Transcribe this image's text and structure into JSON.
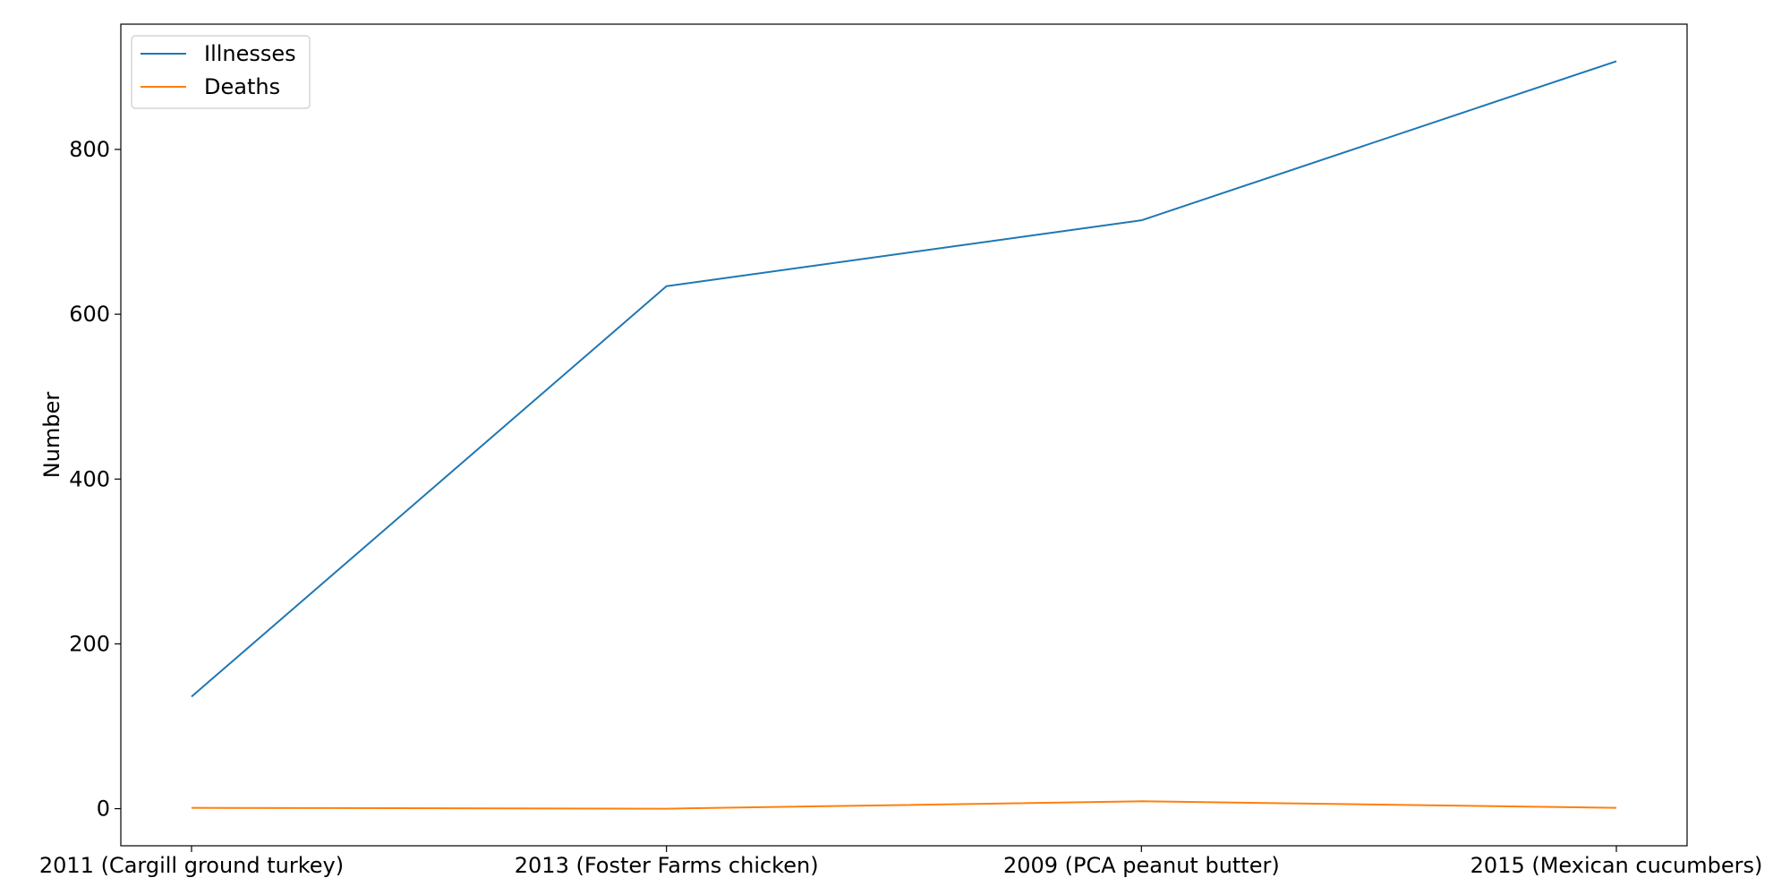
{
  "chart_data": {
    "type": "line",
    "title": "",
    "xlabel": "",
    "ylabel": "Number",
    "categories": [
      "2011 (Cargill ground turkey)",
      "2013 (Foster Farms chicken)",
      "2009 (PCA peanut butter)",
      "2015 (Mexican cucumbers)"
    ],
    "series": [
      {
        "name": "Illnesses",
        "color": "#1f77b4",
        "values": [
          136,
          634,
          714,
          907
        ]
      },
      {
        "name": "Deaths",
        "color": "#ff7f0e",
        "values": [
          1,
          0,
          9,
          1
        ]
      }
    ],
    "ylim": [
      -45,
      952
    ],
    "yticks": [
      0,
      200,
      400,
      600,
      800
    ],
    "grid": false,
    "legend": "top-left"
  }
}
